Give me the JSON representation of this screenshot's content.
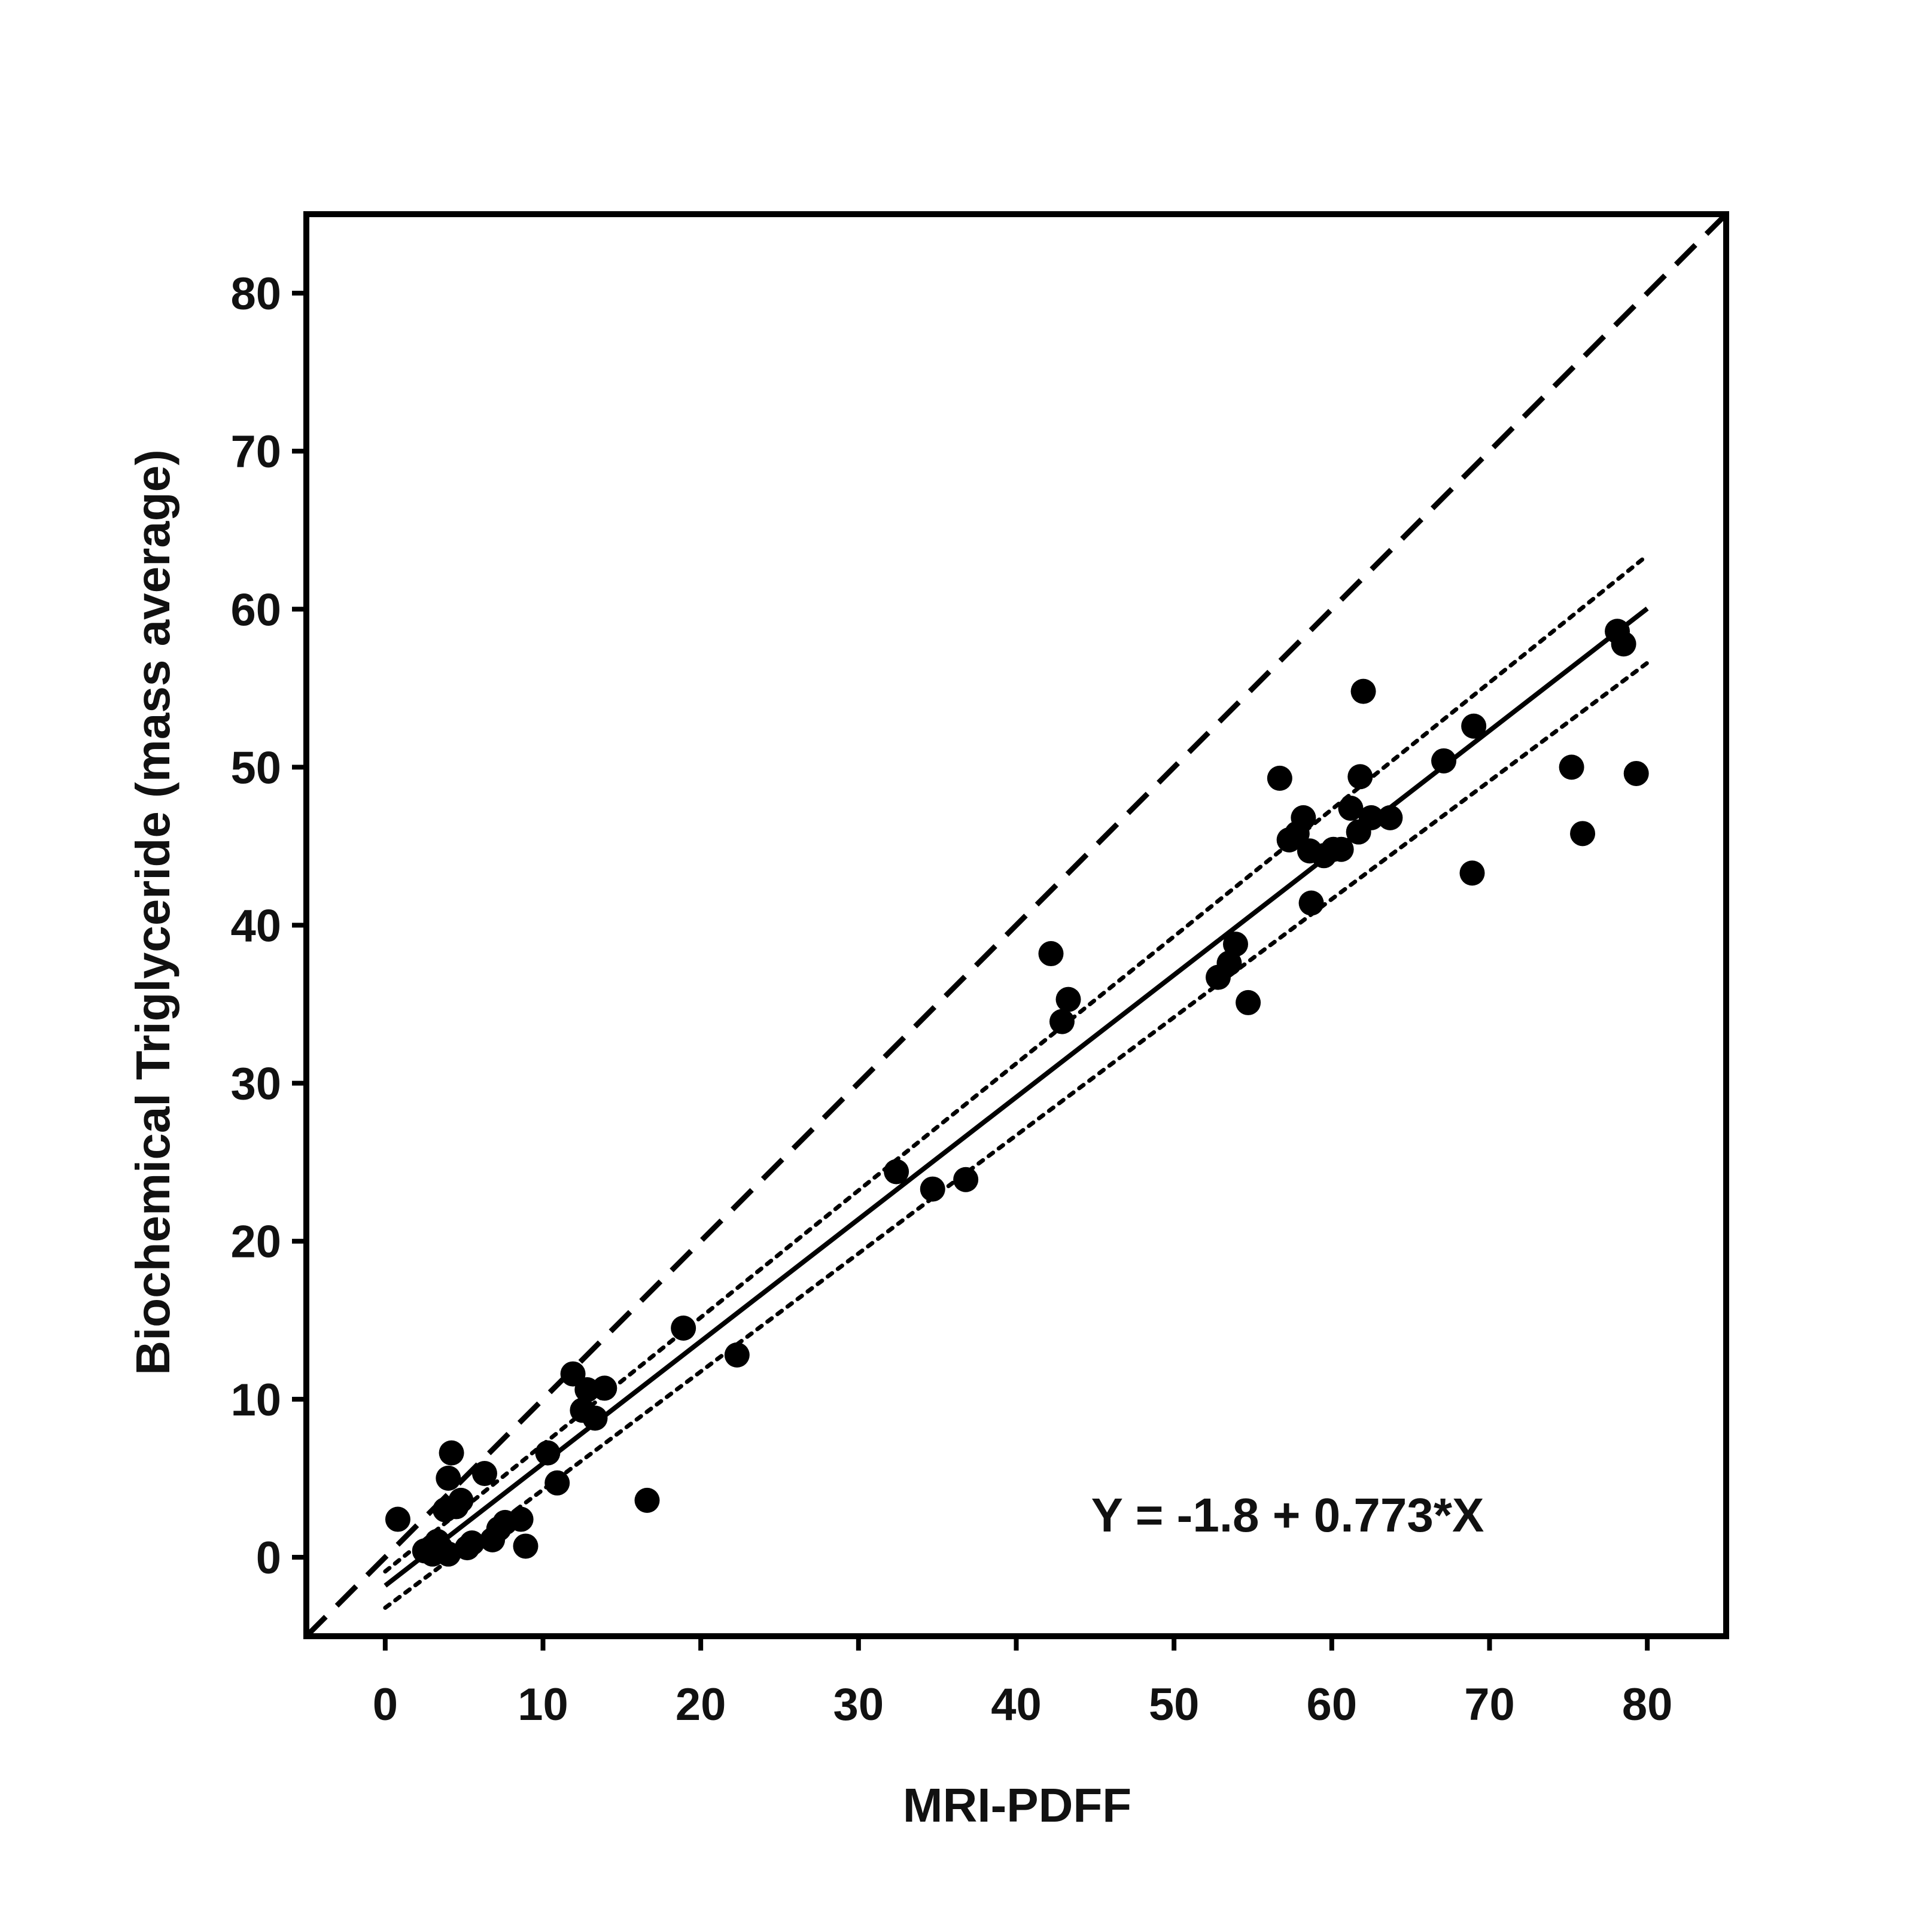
{
  "chart_data": {
    "type": "scatter",
    "title": "",
    "xlabel": "MRI-PDFF",
    "ylabel": "Biochemical Triglyceride (mass average)",
    "xlim": [
      -5,
      85
    ],
    "ylim": [
      -5,
      85
    ],
    "xticks": [
      0,
      10,
      20,
      30,
      40,
      50,
      60,
      70,
      80
    ],
    "yticks": [
      0,
      10,
      20,
      30,
      40,
      50,
      60,
      70,
      80
    ],
    "grid": false,
    "equation_label": "Y = -1.8 + 0.773*X",
    "regression": {
      "intercept": -1.8,
      "slope": 0.773,
      "x_range": [
        0,
        80
      ]
    },
    "confidence_band": {
      "lower": [
        [
          0,
          -3.2
        ],
        [
          80,
          56.6
        ]
      ],
      "upper": [
        [
          0,
          -0.9
        ],
        [
          80,
          63.4
        ]
      ]
    },
    "identity_line": {
      "x_range": [
        -5,
        85
      ]
    },
    "points": [
      [
        0.8,
        2.4
      ],
      [
        2.5,
        0.4
      ],
      [
        3.0,
        0.2
      ],
      [
        3.3,
        1.0
      ],
      [
        3.5,
        0.6
      ],
      [
        3.8,
        3.0
      ],
      [
        4.0,
        0.2
      ],
      [
        4.0,
        5.0
      ],
      [
        4.2,
        6.6
      ],
      [
        4.5,
        3.2
      ],
      [
        4.8,
        3.6
      ],
      [
        5.2,
        0.6
      ],
      [
        5.5,
        0.9
      ],
      [
        6.3,
        5.3
      ],
      [
        6.8,
        1.1
      ],
      [
        7.2,
        1.8
      ],
      [
        7.6,
        2.2
      ],
      [
        8.6,
        2.4
      ],
      [
        8.9,
        0.7
      ],
      [
        10.3,
        6.6
      ],
      [
        10.9,
        4.7
      ],
      [
        11.9,
        11.6
      ],
      [
        12.5,
        9.3
      ],
      [
        12.8,
        10.6
      ],
      [
        13.3,
        8.8
      ],
      [
        13.9,
        10.7
      ],
      [
        16.6,
        3.6
      ],
      [
        18.9,
        14.5
      ],
      [
        22.3,
        12.8
      ],
      [
        32.4,
        24.4
      ],
      [
        34.7,
        23.3
      ],
      [
        36.8,
        23.9
      ],
      [
        42.2,
        38.2
      ],
      [
        42.9,
        33.9
      ],
      [
        43.3,
        35.3
      ],
      [
        52.8,
        36.7
      ],
      [
        53.5,
        37.6
      ],
      [
        53.9,
        38.8
      ],
      [
        54.7,
        35.1
      ],
      [
        56.7,
        49.3
      ],
      [
        57.3,
        45.4
      ],
      [
        57.8,
        45.8
      ],
      [
        58.2,
        46.8
      ],
      [
        58.6,
        44.7
      ],
      [
        58.7,
        41.4
      ],
      [
        59.5,
        44.4
      ],
      [
        60.1,
        44.8
      ],
      [
        60.6,
        44.8
      ],
      [
        61.2,
        47.4
      ],
      [
        61.7,
        45.9
      ],
      [
        61.8,
        49.4
      ],
      [
        62.0,
        54.8
      ],
      [
        62.5,
        46.8
      ],
      [
        63.7,
        46.8
      ],
      [
        67.1,
        50.4
      ],
      [
        68.9,
        43.3
      ],
      [
        69.0,
        52.6
      ],
      [
        75.2,
        50.0
      ],
      [
        75.9,
        45.8
      ],
      [
        78.1,
        58.6
      ],
      [
        78.5,
        57.8
      ],
      [
        79.3,
        49.6
      ]
    ]
  }
}
